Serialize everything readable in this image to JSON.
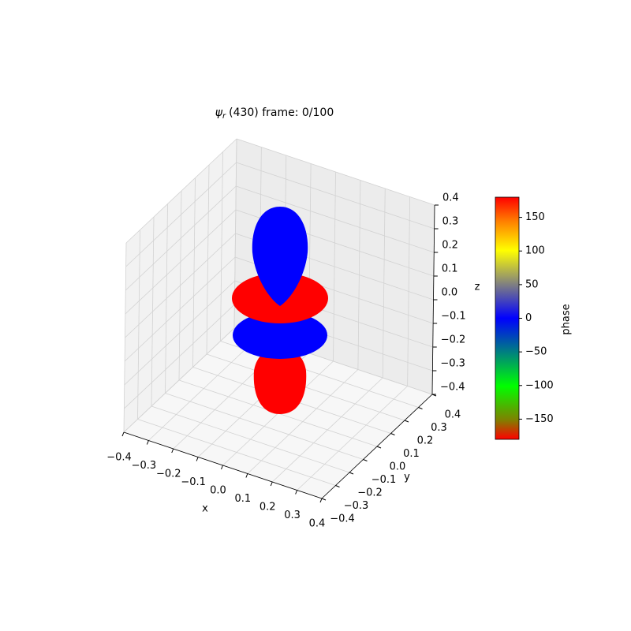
{
  "chart_data": {
    "type": "surface3d",
    "title_symbol": "ψ",
    "title_subscript": "r",
    "title_text": "(430) frame: 0/100",
    "x_label": "x",
    "y_label": "y",
    "z_label": "z",
    "xlim": [
      -0.4,
      0.4
    ],
    "ylim": [
      -0.4,
      0.4
    ],
    "zlim": [
      -0.4,
      0.4
    ],
    "xticks": [
      {
        "value": -0.4,
        "label": "−0.4"
      },
      {
        "value": -0.3,
        "label": "−0.3"
      },
      {
        "value": -0.2,
        "label": "−0.2"
      },
      {
        "value": -0.1,
        "label": "−0.1"
      },
      {
        "value": 0,
        "label": "0.0"
      },
      0.1,
      0.2,
      0.3,
      0.4
    ],
    "yticks": [
      {
        "value": -0.4,
        "label": "−0.4"
      },
      {
        "value": -0.3,
        "label": "−0.3"
      },
      {
        "value": -0.2,
        "label": "−0.2"
      },
      {
        "value": -0.1,
        "label": "−0.1"
      },
      {
        "value": 0,
        "label": "0.0"
      },
      0.1,
      0.2,
      0.3,
      0.4
    ],
    "zticks": [
      {
        "value": -0.4,
        "label": "−0.4"
      },
      {
        "value": -0.3,
        "label": "−0.3"
      },
      {
        "value": -0.2,
        "label": "−0.2"
      },
      {
        "value": -0.1,
        "label": "−0.1"
      },
      {
        "value": 0,
        "label": "0.0"
      },
      0.1,
      0.2,
      0.3,
      0.4
    ],
    "grid": true,
    "colorbar": {
      "label": "phase",
      "lim": [
        -180,
        180
      ],
      "ticks": [
        {
          "value": -150,
          "label": "−150"
        },
        {
          "value": -100,
          "label": "−100"
        },
        {
          "value": -50,
          "label": "−50"
        },
        0,
        50,
        100,
        150
      ]
    }
  }
}
